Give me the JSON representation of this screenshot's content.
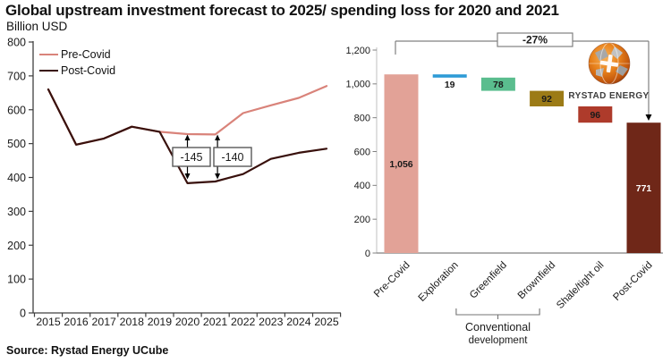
{
  "header": {
    "title": "Global upstream investment forecast to 2025/ spending loss for 2020 and 2021",
    "subtitle": "Billion USD"
  },
  "footer": {
    "source": "Source: Rystad Energy UCube"
  },
  "logo": {
    "text": "RYSTAD ENERGY"
  },
  "chart_data": [
    {
      "type": "line",
      "title": "Global upstream investment forecast to 2025",
      "ylabel": "Billion USD",
      "x": [
        2015,
        2016,
        2017,
        2018,
        2019,
        2020,
        2021,
        2022,
        2023,
        2024,
        2025
      ],
      "ylim": [
        0,
        800
      ],
      "ytick_step": 100,
      "grid": false,
      "legend_position": "top-left",
      "series": [
        {
          "name": "Pre-Covid",
          "color": "#D9837A",
          "values": [
            660,
            497,
            515,
            550,
            535,
            528,
            527,
            590,
            613,
            635,
            670
          ]
        },
        {
          "name": "Post-Covid",
          "color": "#38100C",
          "values": [
            660,
            497,
            515,
            550,
            535,
            383,
            388,
            410,
            455,
            473,
            485
          ]
        }
      ],
      "annotations": [
        {
          "year": 2020,
          "label": "-145"
        },
        {
          "year": 2021,
          "label": "-140"
        }
      ]
    },
    {
      "type": "waterfall-bar",
      "title": "Spending loss for 2020 and 2021",
      "ylim": [
        0,
        1200
      ],
      "ytick_step": 200,
      "total_change_label": "-27%",
      "bars": [
        {
          "category": "Pre-Covid",
          "base": 0,
          "top": 1056,
          "value_label": "1,056",
          "color": "#E2A297",
          "text_color": "#1a1a1a",
          "label_position": "inside"
        },
        {
          "category": "Exploration",
          "base": 1037,
          "top": 1056,
          "value_label": "19",
          "color": "#2E9BD6",
          "text_color": "#1a1a1a",
          "label_position": "below"
        },
        {
          "category": "Greenfield",
          "base": 959,
          "top": 1037,
          "value_label": "78",
          "color": "#5ABD8E",
          "text_color": "#1a1a1a",
          "label_position": "inside"
        },
        {
          "category": "Brownfield",
          "base": 867,
          "top": 959,
          "value_label": "92",
          "color": "#9C7B16",
          "text_color": "#1a1a1a",
          "label_position": "inside"
        },
        {
          "category": "Shale/tight oil",
          "base": 771,
          "top": 867,
          "value_label": "96",
          "color": "#AE3B2B",
          "text_color": "#1a1a1a",
          "label_position": "inside"
        },
        {
          "category": "Post-Covid",
          "base": 0,
          "top": 771,
          "value_label": "771",
          "color": "#6F2718",
          "text_color": "#ffffff",
          "label_position": "inside"
        }
      ],
      "group_annotation": {
        "line1": "Conventional",
        "line2": "development",
        "from_index": 2,
        "to_index": 3
      }
    }
  ]
}
